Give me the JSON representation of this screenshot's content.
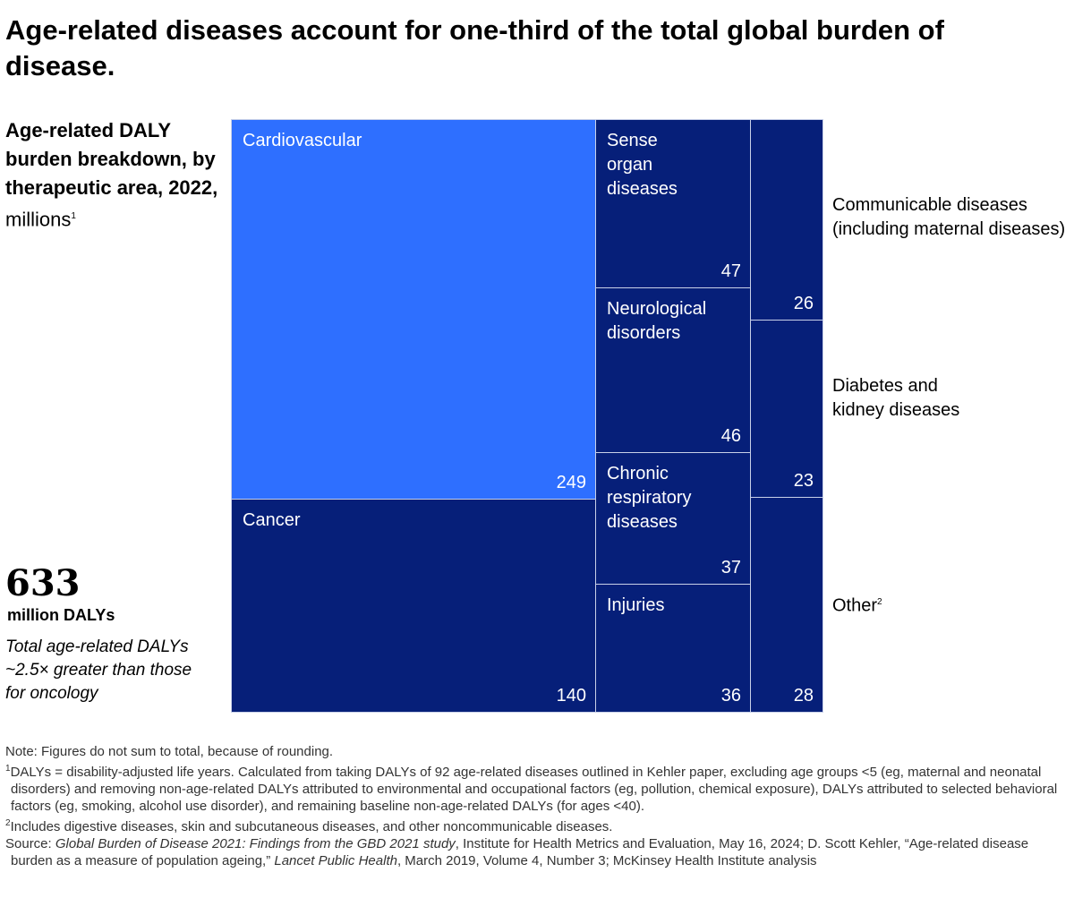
{
  "title": "Age-related diseases account for one-third of the total global burden of disease.",
  "subtitle": {
    "bold": "Age-related DALY burden breakdown, by therapeutic area, 2022,",
    "unit": "millions",
    "footnote_mark": "1"
  },
  "total": {
    "value": "633",
    "unit": "million DALYs",
    "note": "Total age-related DALYs ~2.5× greater than those for oncology"
  },
  "chart_data": {
    "type": "treemap",
    "colors": {
      "highlight": "#2e6fff",
      "default": "#061f79"
    },
    "items": [
      {
        "label": "Cardiovascular",
        "value": 249,
        "highlight": true
      },
      {
        "label": "Cancer",
        "value": 140
      },
      {
        "label": "Sense organ diseases",
        "value": 47
      },
      {
        "label": "Neurological disorders",
        "value": 46
      },
      {
        "label": "Chronic respiratory diseases",
        "value": 37
      },
      {
        "label": "Injuries",
        "value": 36
      },
      {
        "label": "Communicable diseases (including maternal diseases)",
        "value": 26,
        "label_outside": true
      },
      {
        "label": "Diabetes and kidney diseases",
        "value": 23,
        "label_outside": true
      },
      {
        "label": "Other",
        "value": 28,
        "label_outside": true,
        "footnote_mark": "2"
      }
    ]
  },
  "notes": {
    "note": "Note: Figures do not sum to total, because of rounding.",
    "fn1": "DALYs = disability-adjusted life years. Calculated from taking DALYs of 92 age-related diseases outlined in Kehler paper, excluding age groups <5 (eg, maternal and neonatal disorders) and removing non-age-related DALYs attributed to environmental and occupational factors (eg, pollution, chemical exposure), DALYs attributed to selected behavioral factors (eg, smoking, alcohol use disorder), and remaining baseline non-age-related DALYs (for ages <40).",
    "fn2": "Includes digestive diseases, skin and subcutaneous diseases, and other noncommunicable diseases.",
    "source_prefix": "Source: ",
    "source_italic1": "Global Burden of Disease 2021: Findings from the GBD 2021 study",
    "source_mid": ", Institute for Health Metrics and Evaluation, May 16, 2024; D. Scott Kehler, “Age-related disease burden as a measure of population ageing,” ",
    "source_italic2": "Lancet Public Health",
    "source_end": ", March 2019, Volume 4, Number 3; McKinsey Health Institute analysis"
  }
}
